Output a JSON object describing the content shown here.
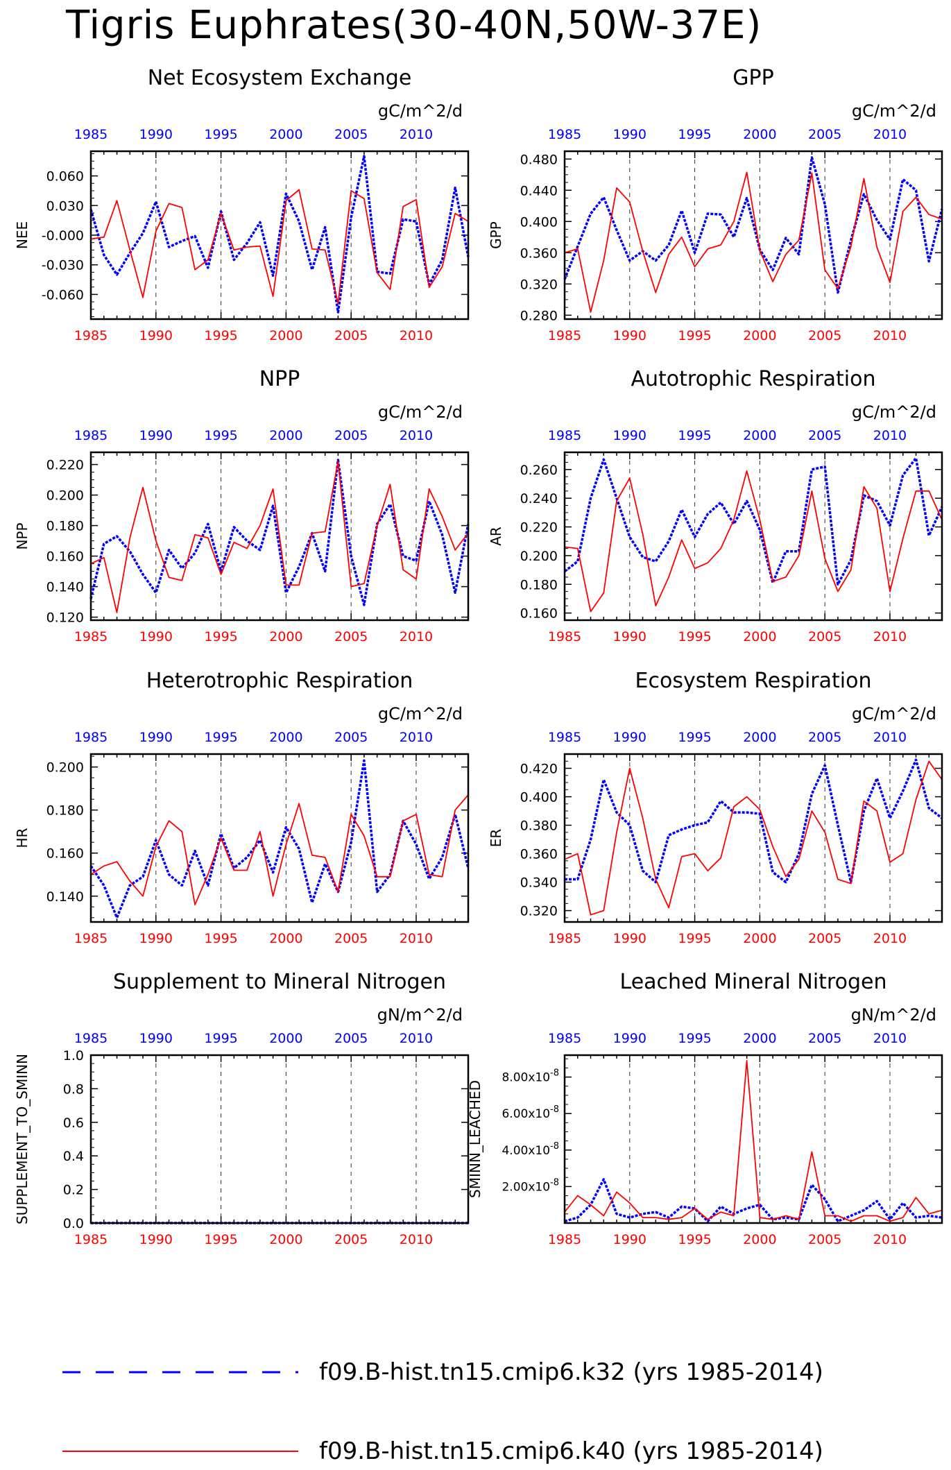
{
  "main_title": "Tigris Euphrates(30-40N,50W-37E)",
  "year_tick_labels": [
    "1985",
    "1990",
    "1995",
    "2000",
    "2005",
    "2010"
  ],
  "colors": {
    "run_k32": "#0000ff",
    "run_k40": "#ff0000"
  },
  "legend": [
    {
      "label": "f09.B-hist.tn15.cmip6.k32 (yrs 1985-2014)",
      "color": "#0000ff",
      "style": "dashed"
    },
    {
      "label": "f09.B-hist.tn15.cmip6.k40 (yrs 1985-2014)",
      "color": "#ff0000",
      "style": "solid"
    }
  ],
  "chart_data": [
    {
      "type": "line",
      "title": "Net Ecosystem Exchange",
      "units": "gC/m^2/d",
      "ylabel": "NEE",
      "xlim": [
        1985,
        2014
      ],
      "ylim": [
        -0.085,
        0.085
      ],
      "yticks": [
        -0.06,
        -0.03,
        0,
        0.03,
        0.06
      ],
      "ytick_labels": [
        "-0.060",
        "-0.030",
        "-0.000",
        "0.030",
        "0.060"
      ],
      "x": [
        1985,
        1986,
        1987,
        1988,
        1989,
        1990,
        1991,
        1992,
        1993,
        1994,
        1995,
        1996,
        1997,
        1998,
        1999,
        2000,
        2001,
        2002,
        2003,
        2004,
        2005,
        2006,
        2007,
        2008,
        2009,
        2010,
        2011,
        2012,
        2013,
        2014
      ],
      "series": [
        {
          "name": "f09.B-hist.tn15.cmip6.k32 (yrs 1985-2014)",
          "color": "#0000ff",
          "style": "dashed",
          "values": [
            0.026,
            -0.02,
            -0.04,
            -0.018,
            0.002,
            0.034,
            -0.012,
            -0.006,
            -0.001,
            -0.033,
            0.024,
            -0.025,
            -0.008,
            0.013,
            -0.041,
            0.042,
            0.014,
            -0.035,
            0.008,
            -0.078,
            0.018,
            0.08,
            -0.037,
            -0.039,
            0.016,
            0.014,
            -0.05,
            -0.025,
            0.048,
            -0.022
          ]
        },
        {
          "name": "f09.B-hist.tn15.cmip6.k40 (yrs 1985-2014)",
          "color": "#ff0000",
          "style": "solid",
          "values": [
            -0.004,
            -0.002,
            0.035,
            -0.015,
            -0.063,
            0.004,
            0.032,
            0.028,
            -0.035,
            -0.025,
            0.022,
            -0.015,
            -0.012,
            -0.011,
            -0.062,
            0.035,
            0.046,
            -0.014,
            -0.015,
            -0.069,
            0.045,
            0.037,
            -0.038,
            -0.055,
            0.029,
            0.036,
            -0.053,
            -0.032,
            0.022,
            0.014
          ]
        }
      ]
    },
    {
      "type": "line",
      "title": "GPP",
      "units": "gC/m^2/d",
      "ylabel": "GPP",
      "xlim": [
        1985,
        2014
      ],
      "ylim": [
        0.275,
        0.49
      ],
      "yticks": [
        0.28,
        0.32,
        0.36,
        0.4,
        0.44,
        0.48
      ],
      "ytick_labels": [
        "0.280",
        "0.320",
        "0.360",
        "0.400",
        "0.440",
        "0.480"
      ],
      "x": [
        1985,
        1986,
        1987,
        1988,
        1989,
        1990,
        1991,
        1992,
        1993,
        1994,
        1995,
        1996,
        1997,
        1998,
        1999,
        2000,
        2001,
        2002,
        2003,
        2004,
        2005,
        2006,
        2007,
        2008,
        2009,
        2010,
        2011,
        2012,
        2013,
        2014
      ],
      "series": [
        {
          "name": "f09.B-hist.tn15.cmip6.k32 (yrs 1985-2014)",
          "color": "#0000ff",
          "style": "dashed",
          "values": [
            0.326,
            0.368,
            0.41,
            0.431,
            0.389,
            0.35,
            0.362,
            0.35,
            0.37,
            0.414,
            0.36,
            0.41,
            0.409,
            0.38,
            0.43,
            0.364,
            0.338,
            0.379,
            0.358,
            0.482,
            0.422,
            0.309,
            0.376,
            0.435,
            0.402,
            0.377,
            0.454,
            0.44,
            0.349,
            0.416
          ]
        },
        {
          "name": "f09.B-hist.tn15.cmip6.k40 (yrs 1985-2014)",
          "color": "#ff0000",
          "style": "solid",
          "values": [
            0.36,
            0.365,
            0.284,
            0.35,
            0.443,
            0.425,
            0.362,
            0.309,
            0.358,
            0.38,
            0.342,
            0.365,
            0.37,
            0.4,
            0.463,
            0.363,
            0.323,
            0.358,
            0.376,
            0.462,
            0.338,
            0.314,
            0.368,
            0.455,
            0.367,
            0.322,
            0.413,
            0.431,
            0.409,
            0.403
          ]
        }
      ]
    },
    {
      "type": "line",
      "title": "NPP",
      "units": "gC/m^2/d",
      "ylabel": "NPP",
      "xlim": [
        1985,
        2014
      ],
      "ylim": [
        0.118,
        0.228
      ],
      "yticks": [
        0.12,
        0.14,
        0.16,
        0.18,
        0.2,
        0.22
      ],
      "ytick_labels": [
        "0.120",
        "0.140",
        "0.160",
        "0.180",
        "0.200",
        "0.220"
      ],
      "x": [
        1985,
        1986,
        1987,
        1988,
        1989,
        1990,
        1991,
        1992,
        1993,
        1994,
        1995,
        1996,
        1997,
        1998,
        1999,
        2000,
        2001,
        2002,
        2003,
        2004,
        2005,
        2006,
        2007,
        2008,
        2009,
        2010,
        2011,
        2012,
        2013,
        2014
      ],
      "series": [
        {
          "name": "f09.B-hist.tn15.cmip6.k32 (yrs 1985-2014)",
          "color": "#0000ff",
          "style": "dashed",
          "values": [
            0.132,
            0.168,
            0.173,
            0.163,
            0.148,
            0.136,
            0.164,
            0.152,
            0.162,
            0.181,
            0.15,
            0.179,
            0.17,
            0.164,
            0.193,
            0.136,
            0.153,
            0.175,
            0.15,
            0.223,
            0.16,
            0.128,
            0.181,
            0.194,
            0.16,
            0.157,
            0.196,
            0.174,
            0.136,
            0.181
          ]
        },
        {
          "name": "f09.B-hist.tn15.cmip6.k40 (yrs 1985-2014)",
          "color": "#ff0000",
          "style": "solid",
          "values": [
            0.155,
            0.159,
            0.123,
            0.172,
            0.205,
            0.17,
            0.146,
            0.144,
            0.174,
            0.172,
            0.148,
            0.169,
            0.165,
            0.18,
            0.204,
            0.141,
            0.141,
            0.175,
            0.176,
            0.222,
            0.14,
            0.142,
            0.18,
            0.207,
            0.151,
            0.145,
            0.204,
            0.186,
            0.164,
            0.175
          ]
        }
      ]
    },
    {
      "type": "line",
      "title": "Autotrophic Respiration",
      "units": "gC/m^2/d",
      "ylabel": "AR",
      "xlim": [
        1985,
        2014
      ],
      "ylim": [
        0.155,
        0.272
      ],
      "yticks": [
        0.16,
        0.18,
        0.2,
        0.22,
        0.24,
        0.26
      ],
      "ytick_labels": [
        "0.160",
        "0.180",
        "0.200",
        "0.220",
        "0.240",
        "0.260"
      ],
      "x": [
        1985,
        1986,
        1987,
        1988,
        1989,
        1990,
        1991,
        1992,
        1993,
        1994,
        1995,
        1996,
        1997,
        1998,
        1999,
        2000,
        2001,
        2002,
        2003,
        2004,
        2005,
        2006,
        2007,
        2008,
        2009,
        2010,
        2011,
        2012,
        2013,
        2014
      ],
      "series": [
        {
          "name": "f09.B-hist.tn15.cmip6.k32 (yrs 1985-2014)",
          "color": "#0000ff",
          "style": "dashed",
          "values": [
            0.189,
            0.196,
            0.24,
            0.267,
            0.24,
            0.213,
            0.199,
            0.196,
            0.21,
            0.232,
            0.213,
            0.229,
            0.237,
            0.222,
            0.238,
            0.218,
            0.181,
            0.203,
            0.203,
            0.26,
            0.262,
            0.18,
            0.197,
            0.242,
            0.238,
            0.221,
            0.256,
            0.268,
            0.214,
            0.234
          ]
        },
        {
          "name": "f09.B-hist.tn15.cmip6.k40 (yrs 1985-2014)",
          "color": "#ff0000",
          "style": "solid",
          "values": [
            0.206,
            0.205,
            0.161,
            0.174,
            0.238,
            0.254,
            0.215,
            0.165,
            0.185,
            0.211,
            0.191,
            0.195,
            0.205,
            0.225,
            0.259,
            0.225,
            0.182,
            0.185,
            0.2,
            0.245,
            0.198,
            0.175,
            0.19,
            0.248,
            0.233,
            0.175,
            0.212,
            0.245,
            0.245,
            0.225
          ]
        }
      ]
    },
    {
      "type": "line",
      "title": "Heterotrophic Respiration",
      "units": "gC/m^2/d",
      "ylabel": "HR",
      "xlim": [
        1985,
        2014
      ],
      "ylim": [
        0.128,
        0.206
      ],
      "yticks": [
        0.14,
        0.16,
        0.18,
        0.2
      ],
      "ytick_labels": [
        "0.140",
        "0.160",
        "0.180",
        "0.200"
      ],
      "x": [
        1985,
        1986,
        1987,
        1988,
        1989,
        1990,
        1991,
        1992,
        1993,
        1994,
        1995,
        1996,
        1997,
        1998,
        1999,
        2000,
        2001,
        2002,
        2003,
        2004,
        2005,
        2006,
        2007,
        2008,
        2009,
        2010,
        2011,
        2012,
        2013,
        2014
      ],
      "series": [
        {
          "name": "f09.B-hist.tn15.cmip6.k32 (yrs 1985-2014)",
          "color": "#0000ff",
          "style": "dashed",
          "values": [
            0.154,
            0.145,
            0.13,
            0.145,
            0.149,
            0.166,
            0.15,
            0.145,
            0.161,
            0.145,
            0.169,
            0.153,
            0.158,
            0.166,
            0.151,
            0.172,
            0.162,
            0.137,
            0.155,
            0.142,
            0.165,
            0.203,
            0.142,
            0.15,
            0.175,
            0.164,
            0.148,
            0.158,
            0.178,
            0.153
          ]
        },
        {
          "name": "f09.B-hist.tn15.cmip6.k40 (yrs 1985-2014)",
          "color": "#ff0000",
          "style": "solid",
          "values": [
            0.15,
            0.154,
            0.156,
            0.147,
            0.14,
            0.163,
            0.175,
            0.17,
            0.136,
            0.15,
            0.167,
            0.152,
            0.152,
            0.17,
            0.14,
            0.164,
            0.183,
            0.159,
            0.158,
            0.142,
            0.178,
            0.168,
            0.149,
            0.149,
            0.175,
            0.178,
            0.15,
            0.149,
            0.18,
            0.187
          ]
        }
      ]
    },
    {
      "type": "line",
      "title": "Ecosystem Respiration",
      "units": "gC/m^2/d",
      "ylabel": "ER",
      "xlim": [
        1985,
        2014
      ],
      "ylim": [
        0.312,
        0.43
      ],
      "yticks": [
        0.32,
        0.34,
        0.36,
        0.38,
        0.4,
        0.42
      ],
      "ytick_labels": [
        "0.320",
        "0.340",
        "0.360",
        "0.380",
        "0.400",
        "0.420"
      ],
      "x": [
        1985,
        1986,
        1987,
        1988,
        1989,
        1990,
        1991,
        1992,
        1993,
        1994,
        1995,
        1996,
        1997,
        1998,
        1999,
        2000,
        2001,
        2002,
        2003,
        2004,
        2005,
        2006,
        2007,
        2008,
        2009,
        2010,
        2011,
        2012,
        2013,
        2014
      ],
      "series": [
        {
          "name": "f09.B-hist.tn15.cmip6.k32 (yrs 1985-2014)",
          "color": "#0000ff",
          "style": "dashed",
          "values": [
            0.342,
            0.342,
            0.37,
            0.412,
            0.389,
            0.38,
            0.348,
            0.34,
            0.373,
            0.377,
            0.38,
            0.382,
            0.397,
            0.389,
            0.389,
            0.388,
            0.347,
            0.34,
            0.36,
            0.402,
            0.422,
            0.38,
            0.34,
            0.39,
            0.413,
            0.385,
            0.404,
            0.426,
            0.392,
            0.385
          ]
        },
        {
          "name": "f09.B-hist.tn15.cmip6.k40 (yrs 1985-2014)",
          "color": "#ff0000",
          "style": "solid",
          "values": [
            0.356,
            0.36,
            0.317,
            0.32,
            0.375,
            0.42,
            0.385,
            0.342,
            0.322,
            0.358,
            0.36,
            0.348,
            0.357,
            0.393,
            0.4,
            0.391,
            0.365,
            0.344,
            0.356,
            0.39,
            0.375,
            0.342,
            0.339,
            0.397,
            0.39,
            0.354,
            0.36,
            0.398,
            0.425,
            0.412
          ]
        }
      ]
    },
    {
      "type": "line",
      "title": "Supplement to Mineral Nitrogen",
      "units": "gN/m^2/d",
      "ylabel": "SUPPLEMENT_TO_SMINN",
      "xlim": [
        1985,
        2014
      ],
      "ylim": [
        0,
        1
      ],
      "yticks": [
        0,
        0.2,
        0.4,
        0.6,
        0.8,
        1.0
      ],
      "ytick_labels": [
        "0.0",
        "0.2",
        "0.4",
        "0.6",
        "0.8",
        "1.0"
      ],
      "x": [
        1985,
        1986,
        1987,
        1988,
        1989,
        1990,
        1991,
        1992,
        1993,
        1994,
        1995,
        1996,
        1997,
        1998,
        1999,
        2000,
        2001,
        2002,
        2003,
        2004,
        2005,
        2006,
        2007,
        2008,
        2009,
        2010,
        2011,
        2012,
        2013,
        2014
      ],
      "series": [
        {
          "name": "f09.B-hist.tn15.cmip6.k32 (yrs 1985-2014)",
          "color": "#0000ff",
          "style": "dashed",
          "values": [
            0,
            0,
            0,
            0,
            0,
            0,
            0,
            0,
            0,
            0,
            0,
            0,
            0,
            0,
            0,
            0,
            0,
            0,
            0,
            0,
            0,
            0,
            0,
            0,
            0,
            0,
            0,
            0,
            0,
            0
          ]
        },
        {
          "name": "f09.B-hist.tn15.cmip6.k40 (yrs 1985-2014)",
          "color": "#ff0000",
          "style": "solid",
          "values": [
            0,
            0,
            0,
            0,
            0,
            0,
            0,
            0,
            0,
            0,
            0,
            0,
            0,
            0,
            0,
            0,
            0,
            0,
            0,
            0,
            0,
            0,
            0,
            0,
            0,
            0,
            0,
            0,
            0,
            0
          ]
        }
      ]
    },
    {
      "type": "line",
      "title": "Leached Mineral Nitrogen",
      "units": "gN/m^2/d",
      "ylabel": "SMINN_LEACHED",
      "xlim": [
        1985,
        2014
      ],
      "ylim": [
        0,
        9.2e-08
      ],
      "yticks": [
        2e-08,
        4e-08,
        6e-08,
        8e-08
      ],
      "ytick_labels": [
        "2.00x10-8",
        "4.00x10-8",
        "6.00x10-8",
        "8.00x10-8"
      ],
      "ytick_mantissa": [
        "2.00x10",
        "4.00x10",
        "6.00x10",
        "8.00x10"
      ],
      "ytick_exponent": "-8",
      "x": [
        1985,
        1986,
        1987,
        1988,
        1989,
        1990,
        1991,
        1992,
        1993,
        1994,
        1995,
        1996,
        1997,
        1998,
        1999,
        2000,
        2001,
        2002,
        2003,
        2004,
        2005,
        2006,
        2007,
        2008,
        2009,
        2010,
        2011,
        2012,
        2013,
        2014
      ],
      "series": [
        {
          "name": "f09.B-hist.tn15.cmip6.k32 (yrs 1985-2014)",
          "color": "#0000ff",
          "style": "dashed",
          "values": [
            1e-09,
            3e-09,
            1e-08,
            2.4e-08,
            5e-09,
            3e-09,
            5e-09,
            6e-09,
            3e-09,
            9e-09,
            8e-09,
            1e-09,
            9e-09,
            5e-09,
            8e-09,
            1e-08,
            2e-09,
            3e-09,
            2e-09,
            2.1e-08,
            1.3e-08,
            1e-09,
            4e-09,
            7e-09,
            1.2e-08,
            2e-09,
            1.1e-08,
            3e-09,
            4e-09,
            3e-09
          ]
        },
        {
          "name": "f09.B-hist.tn15.cmip6.k40 (yrs 1985-2014)",
          "color": "#ff0000",
          "style": "solid",
          "values": [
            6e-09,
            1.5e-08,
            1e-08,
            4e-09,
            1.7e-08,
            1.1e-08,
            3e-09,
            3e-09,
            2e-09,
            3e-09,
            8e-09,
            2e-09,
            6e-09,
            4e-09,
            8.9e-08,
            3e-09,
            2e-09,
            4e-09,
            2e-09,
            3.9e-08,
            4e-09,
            4e-09,
            1e-09,
            4e-09,
            4e-09,
            1e-09,
            3e-09,
            1.4e-08,
            5e-09,
            7e-09
          ]
        }
      ]
    }
  ]
}
